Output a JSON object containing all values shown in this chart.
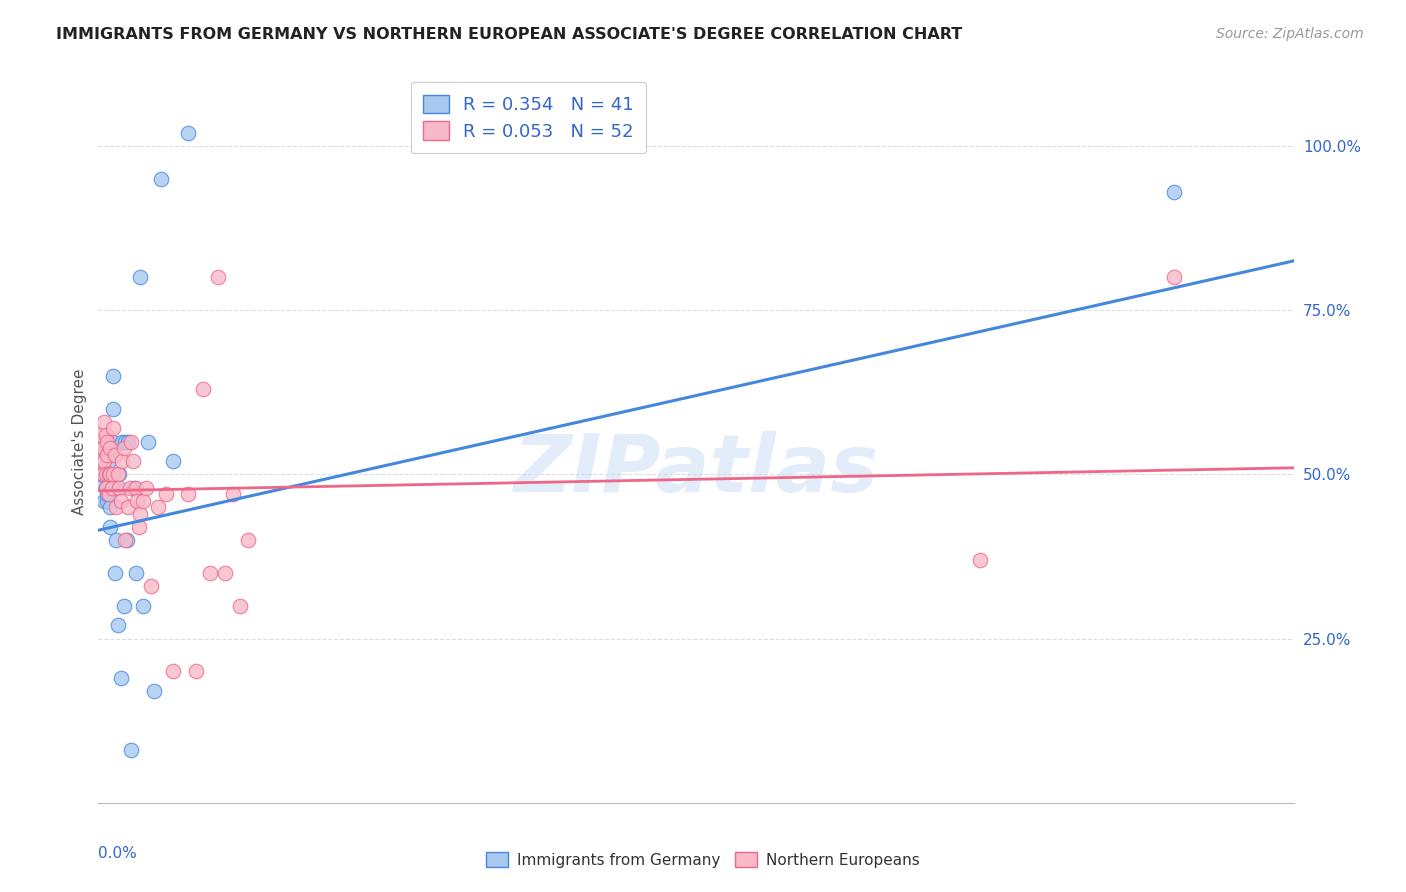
{
  "title": "IMMIGRANTS FROM GERMANY VS NORTHERN EUROPEAN ASSOCIATE'S DEGREE CORRELATION CHART",
  "source": "Source: ZipAtlas.com",
  "ylabel": "Associate's Degree",
  "watermark": "ZIPatlas",
  "legend1_label": "Immigrants from Germany",
  "legend2_label": "Northern Europeans",
  "R1": 0.354,
  "N1": 41,
  "R2": 0.053,
  "N2": 52,
  "color_blue": "#a8c8f0",
  "color_pink": "#f8b8c8",
  "color_line_blue": "#4488dd",
  "color_line_pink": "#ee6688",
  "germany_x": [
    0.001,
    0.002,
    0.003,
    0.004,
    0.004,
    0.005,
    0.005,
    0.005,
    0.006,
    0.006,
    0.006,
    0.007,
    0.007,
    0.008,
    0.008,
    0.009,
    0.009,
    0.01,
    0.01,
    0.011,
    0.011,
    0.012,
    0.013,
    0.014,
    0.015,
    0.016,
    0.017,
    0.018,
    0.019,
    0.02,
    0.022,
    0.024,
    0.025,
    0.028,
    0.03,
    0.033,
    0.037,
    0.042,
    0.05,
    0.06,
    0.72
  ],
  "germany_y": [
    0.49,
    0.5,
    0.52,
    0.54,
    0.46,
    0.5,
    0.48,
    0.55,
    0.46,
    0.47,
    0.5,
    0.52,
    0.5,
    0.45,
    0.42,
    0.55,
    0.48,
    0.6,
    0.65,
    0.35,
    0.48,
    0.4,
    0.27,
    0.5,
    0.19,
    0.55,
    0.3,
    0.55,
    0.4,
    0.55,
    0.08,
    0.48,
    0.35,
    0.8,
    0.3,
    0.55,
    0.17,
    0.95,
    0.52,
    1.02,
    0.93
  ],
  "northern_x": [
    0.001,
    0.002,
    0.002,
    0.003,
    0.003,
    0.004,
    0.004,
    0.005,
    0.005,
    0.005,
    0.006,
    0.006,
    0.007,
    0.007,
    0.008,
    0.008,
    0.009,
    0.01,
    0.01,
    0.011,
    0.012,
    0.013,
    0.014,
    0.015,
    0.016,
    0.017,
    0.018,
    0.02,
    0.021,
    0.022,
    0.023,
    0.025,
    0.026,
    0.027,
    0.028,
    0.03,
    0.032,
    0.035,
    0.04,
    0.045,
    0.05,
    0.06,
    0.065,
    0.07,
    0.075,
    0.08,
    0.085,
    0.09,
    0.095,
    0.1,
    0.59,
    0.72
  ],
  "northern_y": [
    0.55,
    0.52,
    0.56,
    0.5,
    0.54,
    0.58,
    0.52,
    0.56,
    0.5,
    0.48,
    0.53,
    0.55,
    0.5,
    0.47,
    0.5,
    0.54,
    0.48,
    0.57,
    0.5,
    0.53,
    0.45,
    0.5,
    0.48,
    0.46,
    0.52,
    0.54,
    0.4,
    0.45,
    0.48,
    0.55,
    0.52,
    0.48,
    0.46,
    0.42,
    0.44,
    0.46,
    0.48,
    0.33,
    0.45,
    0.47,
    0.2,
    0.47,
    0.2,
    0.63,
    0.35,
    0.8,
    0.35,
    0.47,
    0.3,
    0.4,
    0.37,
    0.8
  ],
  "xmin": 0.0,
  "xmax": 0.8,
  "ymin": 0.0,
  "ymax": 1.1,
  "yticks": [
    0.0,
    0.25,
    0.5,
    0.75,
    1.0
  ],
  "ytick_labels": [
    "",
    "25.0%",
    "50.0%",
    "75.0%",
    "100.0%"
  ],
  "line_blue_y0": 0.415,
  "line_blue_y1": 0.825,
  "line_pink_y0": 0.475,
  "line_pink_y1": 0.51,
  "background_color": "#ffffff",
  "grid_color": "#dddddd",
  "title_color": "#222222",
  "source_color": "#999999",
  "axis_color": "#3366cc",
  "ylabel_color": "#555555"
}
